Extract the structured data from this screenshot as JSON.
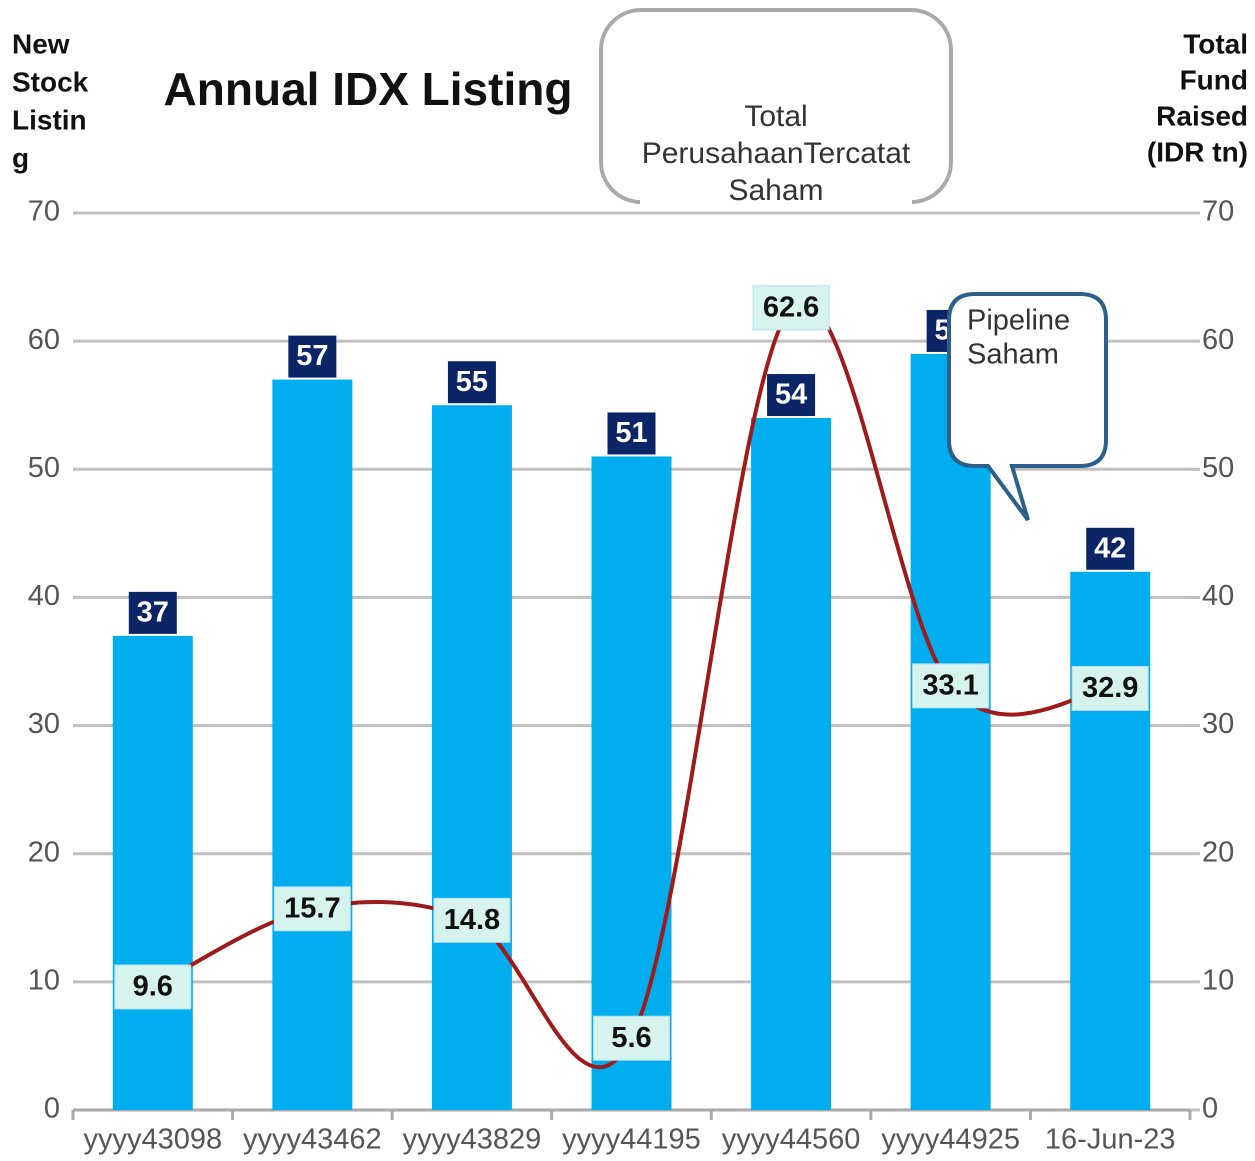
{
  "chart_data": {
    "type": "bar",
    "title": "Annual IDX Listing",
    "y_axis_label": [
      "New",
      "Stock",
      "Listin",
      "g"
    ],
    "y2_axis_label": [
      "Total",
      "Fund",
      "Raised",
      "(IDR tn)"
    ],
    "annotations": [
      [
        "Total",
        "PerusahaanTercatat",
        "Saham"
      ],
      [
        "Pipeline",
        "Saham"
      ]
    ],
    "categories": [
      "yyyy43098",
      "yyyy43462",
      "yyyy43829",
      "yyyy44195",
      "yyyy44560",
      "yyyy44925",
      "16-Jun-23"
    ],
    "series": [
      {
        "type": "bar",
        "color": "#00aeef",
        "label_color": "#0b2566",
        "values": [
          37,
          57,
          55,
          51,
          54,
          59,
          42
        ]
      },
      {
        "type": "line",
        "axis": "y2",
        "color": "#9e1b1b",
        "label_color": "#d6f3ee",
        "values": [
          9.6,
          15.7,
          14.8,
          5.6,
          62.6,
          33.1,
          32.9
        ]
      }
    ],
    "ylim": [
      0,
      70
    ],
    "yticks": [
      0,
      10,
      20,
      30,
      40,
      50,
      60,
      70
    ],
    "y2lim": [
      0,
      70
    ],
    "y2ticks": [
      0,
      10,
      20,
      30,
      40,
      50,
      60,
      70
    ],
    "grid": true
  }
}
